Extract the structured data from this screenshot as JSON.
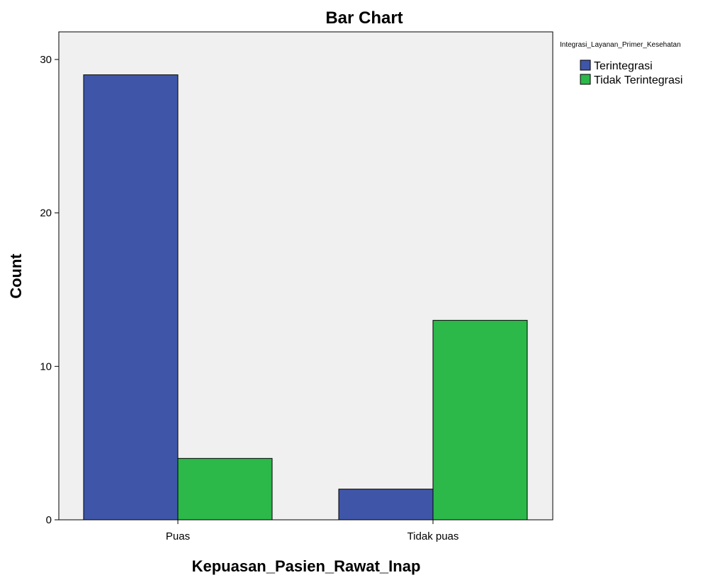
{
  "chart_data": {
    "type": "bar",
    "title": "Bar Chart",
    "xlabel": "Kepuasan_Pasien_Rawat_Inap",
    "ylabel": "Count",
    "categories": [
      "Puas",
      "Tidak puas"
    ],
    "series": [
      {
        "name": "Terintegrasi",
        "values": [
          29,
          2
        ],
        "color": "#3f56a8"
      },
      {
        "name": "Tidak Terintegrasi",
        "values": [
          4,
          13
        ],
        "color": "#2db84a"
      }
    ],
    "ylim": [
      0,
      31.8
    ],
    "yticks": [
      0,
      10,
      20,
      30
    ],
    "grid": false,
    "legend": {
      "title": "Integrasi_Layanan_Primer_Kesehatan",
      "position": "top-right"
    },
    "background": "#f0f0f0"
  }
}
